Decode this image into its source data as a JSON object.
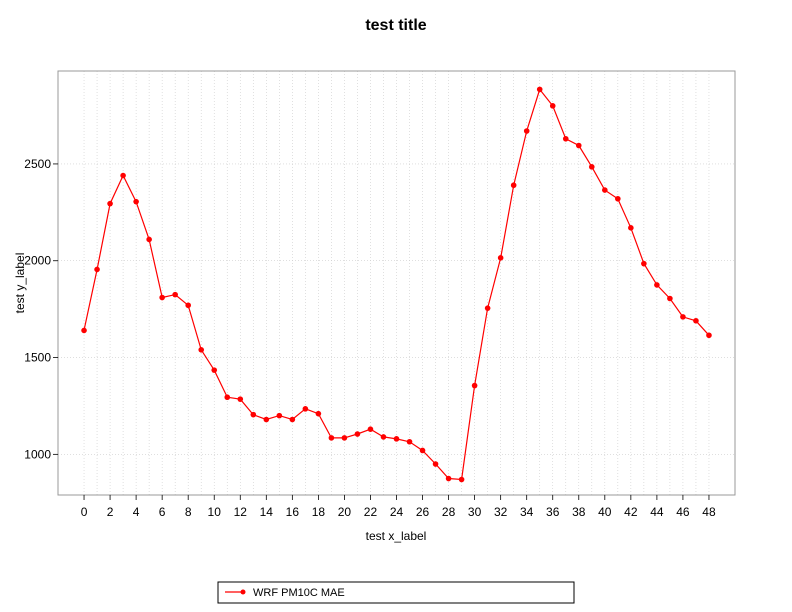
{
  "chart_data": {
    "type": "line",
    "title": "test title",
    "xlabel": "test x_label",
    "ylabel": "test y_label",
    "xlim": [
      -2,
      50
    ],
    "ylim": [
      790,
      2980
    ],
    "grid": true,
    "legend_position": "bottom",
    "x_ticks": [
      0,
      2,
      4,
      6,
      8,
      10,
      12,
      14,
      16,
      18,
      20,
      22,
      24,
      26,
      28,
      30,
      32,
      34,
      36,
      38,
      40,
      42,
      44,
      46,
      48
    ],
    "y_ticks": [
      1000,
      1500,
      2000,
      2500
    ],
    "series": [
      {
        "name": "WRF PM10C MAE",
        "color": "#ff0000",
        "x": [
          0,
          1,
          2,
          3,
          4,
          5,
          6,
          7,
          8,
          9,
          10,
          11,
          12,
          13,
          14,
          15,
          16,
          17,
          18,
          19,
          20,
          21,
          22,
          23,
          24,
          25,
          26,
          27,
          28,
          29,
          30,
          31,
          32,
          33,
          34,
          35,
          36,
          37,
          38,
          39,
          40,
          41,
          42,
          43,
          44,
          45,
          46,
          47,
          48
        ],
        "y": [
          1640,
          1955,
          2295,
          2440,
          2305,
          2110,
          1810,
          1825,
          1770,
          1540,
          1435,
          1295,
          1285,
          1205,
          1180,
          1200,
          1180,
          1235,
          1210,
          1085,
          1085,
          1105,
          1130,
          1090,
          1080,
          1065,
          1020,
          950,
          875,
          870,
          1355,
          1755,
          2015,
          2390,
          2670,
          2885,
          2800,
          2630,
          2595,
          2485,
          2365,
          2320,
          2170,
          1985,
          1875,
          1805,
          1710,
          1690,
          1615
        ]
      }
    ]
  }
}
